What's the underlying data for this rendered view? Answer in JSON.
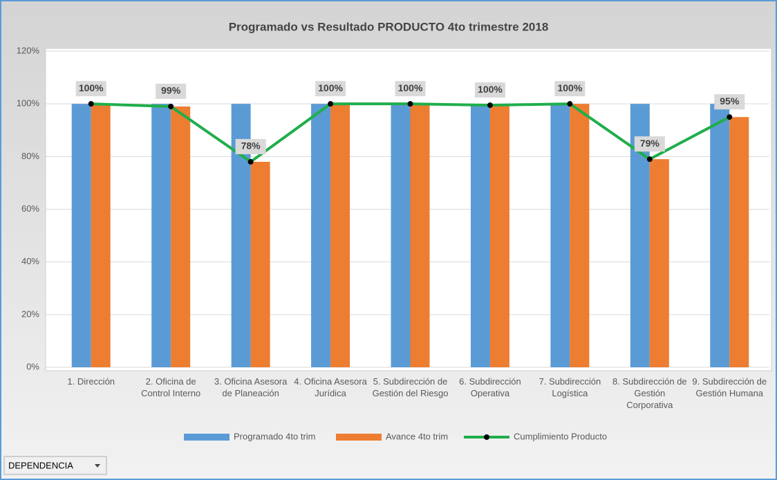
{
  "chart_data": {
    "type": "bar",
    "title": "Programado  vs Resultado PRODUCTO 4to trimestre 2018",
    "categories": [
      "1. Dirección",
      "2. Oficina de Control Interno",
      "3. Oficina Asesora de Planeación",
      "4. Oficina Asesora Jurídica",
      "5. Subdirección de Gestión del Riesgo",
      "6. Subdirección Operativa",
      "7. Subdirección Logística",
      "8. Subdirección de Gestión Corporativa",
      "9. Subdirección de Gestión Humana"
    ],
    "series": [
      {
        "name": "Programado 4to trim",
        "type": "bar",
        "color": "#5b9bd5",
        "values": [
          100,
          100,
          100,
          100,
          100,
          100,
          100,
          100,
          100
        ]
      },
      {
        "name": "Avance 4to trim",
        "type": "bar",
        "color": "#ed7d31",
        "values": [
          100,
          99,
          78,
          100,
          100,
          99.5,
          100,
          79,
          95
        ]
      },
      {
        "name": "Cumplimiento Producto",
        "type": "line",
        "color": "#1fae4b",
        "marker_color": "#000000",
        "values": [
          100,
          99,
          78,
          100,
          100,
          99.5,
          100,
          79,
          95
        ],
        "value_labels": [
          "100%",
          "99%",
          "78%",
          "100%",
          "100%",
          "100%",
          "100%",
          "79%",
          "95%"
        ]
      }
    ],
    "ylim": [
      0,
      120
    ],
    "yticks": [
      {
        "value": 0,
        "label": "0%"
      },
      {
        "value": 20,
        "label": "20%"
      },
      {
        "value": 40,
        "label": "40%"
      },
      {
        "value": 60,
        "label": "60%"
      },
      {
        "value": 80,
        "label": "80%"
      },
      {
        "value": 100,
        "label": "100%"
      },
      {
        "value": 120,
        "label": "120%"
      }
    ],
    "grid": true,
    "legend": "bottom"
  },
  "pivot_button": {
    "label": "DEPENDENCIA"
  }
}
